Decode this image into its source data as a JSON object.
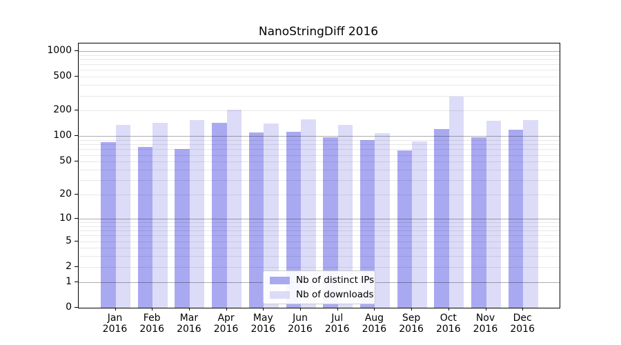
{
  "chart_data": {
    "type": "bar",
    "title": "NanoStringDiff 2016",
    "year": "2016",
    "months": [
      "Jan",
      "Feb",
      "Mar",
      "Apr",
      "May",
      "Jun",
      "Jul",
      "Aug",
      "Sep",
      "Oct",
      "Nov",
      "Dec"
    ],
    "series": [
      {
        "name": "Nb of distinct IPs",
        "color": "#a9a9f2",
        "values": [
          85,
          75,
          71,
          145,
          110,
          112,
          98,
          90,
          68,
          122,
          98,
          120
        ]
      },
      {
        "name": "Nb of downloads",
        "color": "#dcdcf8",
        "values": [
          136,
          143,
          155,
          205,
          140,
          159,
          136,
          108,
          86,
          295,
          152,
          156
        ]
      }
    ],
    "y_scale": "log10(value+1)",
    "y_ticks": [
      0,
      1,
      2,
      5,
      10,
      20,
      50,
      100,
      200,
      500,
      1000
    ],
    "major_gridlines": [
      1,
      10,
      100,
      1000
    ],
    "minor_gridlines": [
      2,
      3,
      4,
      5,
      6,
      7,
      8,
      9,
      20,
      30,
      40,
      50,
      60,
      70,
      80,
      90,
      200,
      300,
      400,
      500,
      600,
      700,
      800,
      900
    ],
    "ylim": [
      0,
      1220
    ],
    "grid": "on",
    "legend_position": "lower center",
    "xlabel": "",
    "ylabel": ""
  },
  "colors": {
    "bar_ips": "#a9a9f2",
    "bar_downloads": "#dcdcf8",
    "major_grid": "#b3b3b3",
    "minor_grid": "#e9e9e9",
    "axis": "#000000",
    "legend_border": "#cccccc",
    "background": "#ffffff"
  }
}
